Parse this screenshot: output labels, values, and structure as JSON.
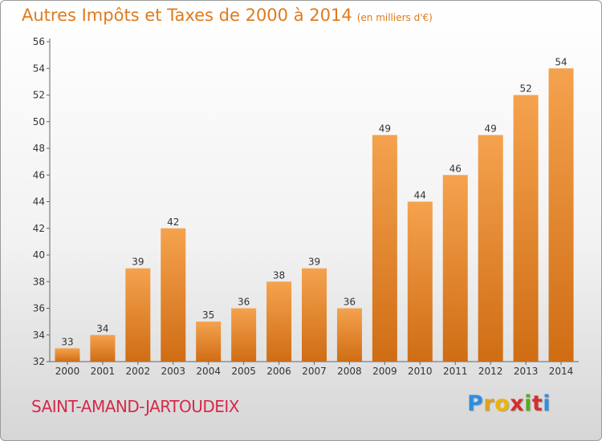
{
  "header": {
    "title": "Autres Impôts et Taxes de 2000 à 2014",
    "subtitle": "(en milliers d'€)"
  },
  "footer": {
    "commune": "SAINT-AMAND-JARTOUDEIX",
    "logo_letters": [
      "P",
      "r",
      "o",
      "x",
      "i",
      "t",
      "i"
    ],
    "logo_colors": [
      "#2e8ee0",
      "#e0a21c",
      "#f0b400",
      "#d82c2c",
      "#5aaa1e",
      "#d82c2c",
      "#2e8ee0"
    ]
  },
  "chart_data": {
    "type": "bar",
    "categories": [
      "2000",
      "2001",
      "2002",
      "2003",
      "2004",
      "2005",
      "2006",
      "2007",
      "2008",
      "2009",
      "2010",
      "2011",
      "2012",
      "2013",
      "2014"
    ],
    "values": [
      33,
      34,
      39,
      42,
      35,
      36,
      38,
      39,
      36,
      49,
      44,
      46,
      49,
      52,
      54
    ],
    "title": "Autres Impôts et Taxes de 2000 à 2014",
    "subtitle": "(en milliers d'€)",
    "ylim": [
      32,
      56
    ],
    "yticks": [
      32,
      34,
      36,
      38,
      40,
      42,
      44,
      46,
      48,
      50,
      52,
      54,
      56
    ],
    "grid": false,
    "bar_color_top": "#f5a24e",
    "bar_color_bottom": "#cf6d14"
  }
}
